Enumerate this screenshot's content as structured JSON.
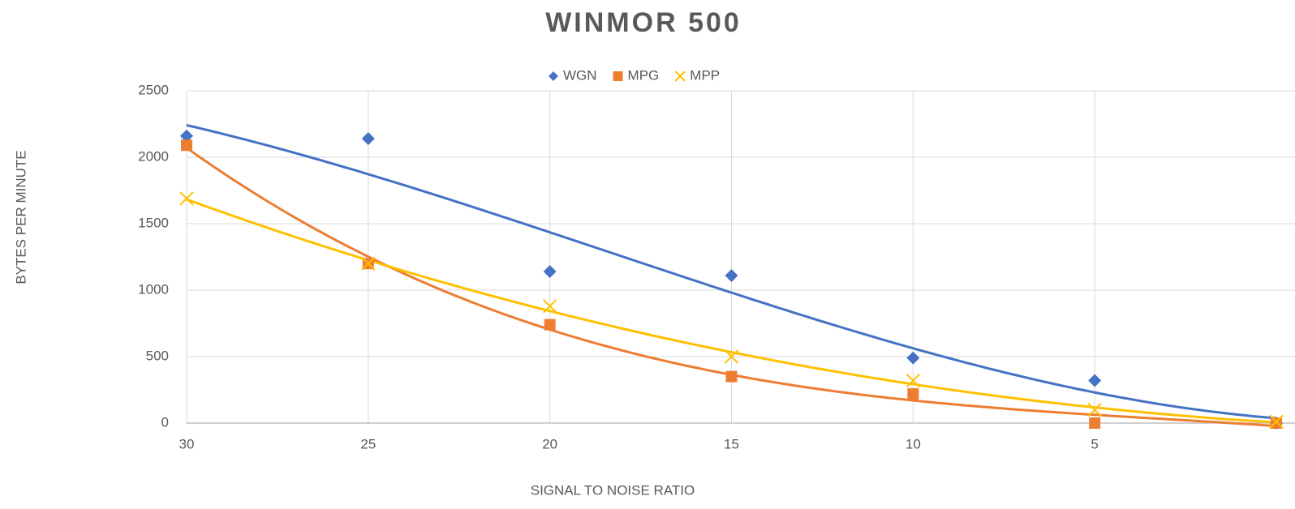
{
  "chart_data": {
    "type": "scatter",
    "title": "WINMOR 500",
    "xlabel": "SIGNAL TO NOISE RATIO",
    "ylabel": "BYTES PER MINUTE",
    "x": [
      30,
      25,
      20,
      15,
      10,
      5,
      0
    ],
    "series": [
      {
        "name": "WGN",
        "color": "#4472c4",
        "marker": "diamond",
        "values": [
          2160,
          2140,
          1140,
          1110,
          490,
          320,
          0
        ]
      },
      {
        "name": "MPG",
        "color": "#ed7d31",
        "marker": "square",
        "values": [
          2090,
          1200,
          740,
          350,
          220,
          0,
          0
        ]
      },
      {
        "name": "MPP",
        "color": "#ffc000",
        "marker": "x",
        "values": [
          1690,
          1200,
          880,
          500,
          320,
          100,
          10
        ]
      }
    ],
    "xlim": [
      30,
      0
    ],
    "xticks": [
      30,
      25,
      20,
      15,
      10,
      5
    ],
    "ylim": [
      0,
      2500
    ],
    "yticks": [
      0,
      500,
      1000,
      1500,
      2000,
      2500
    ],
    "grid": true,
    "trendline": true,
    "legend": "top"
  }
}
